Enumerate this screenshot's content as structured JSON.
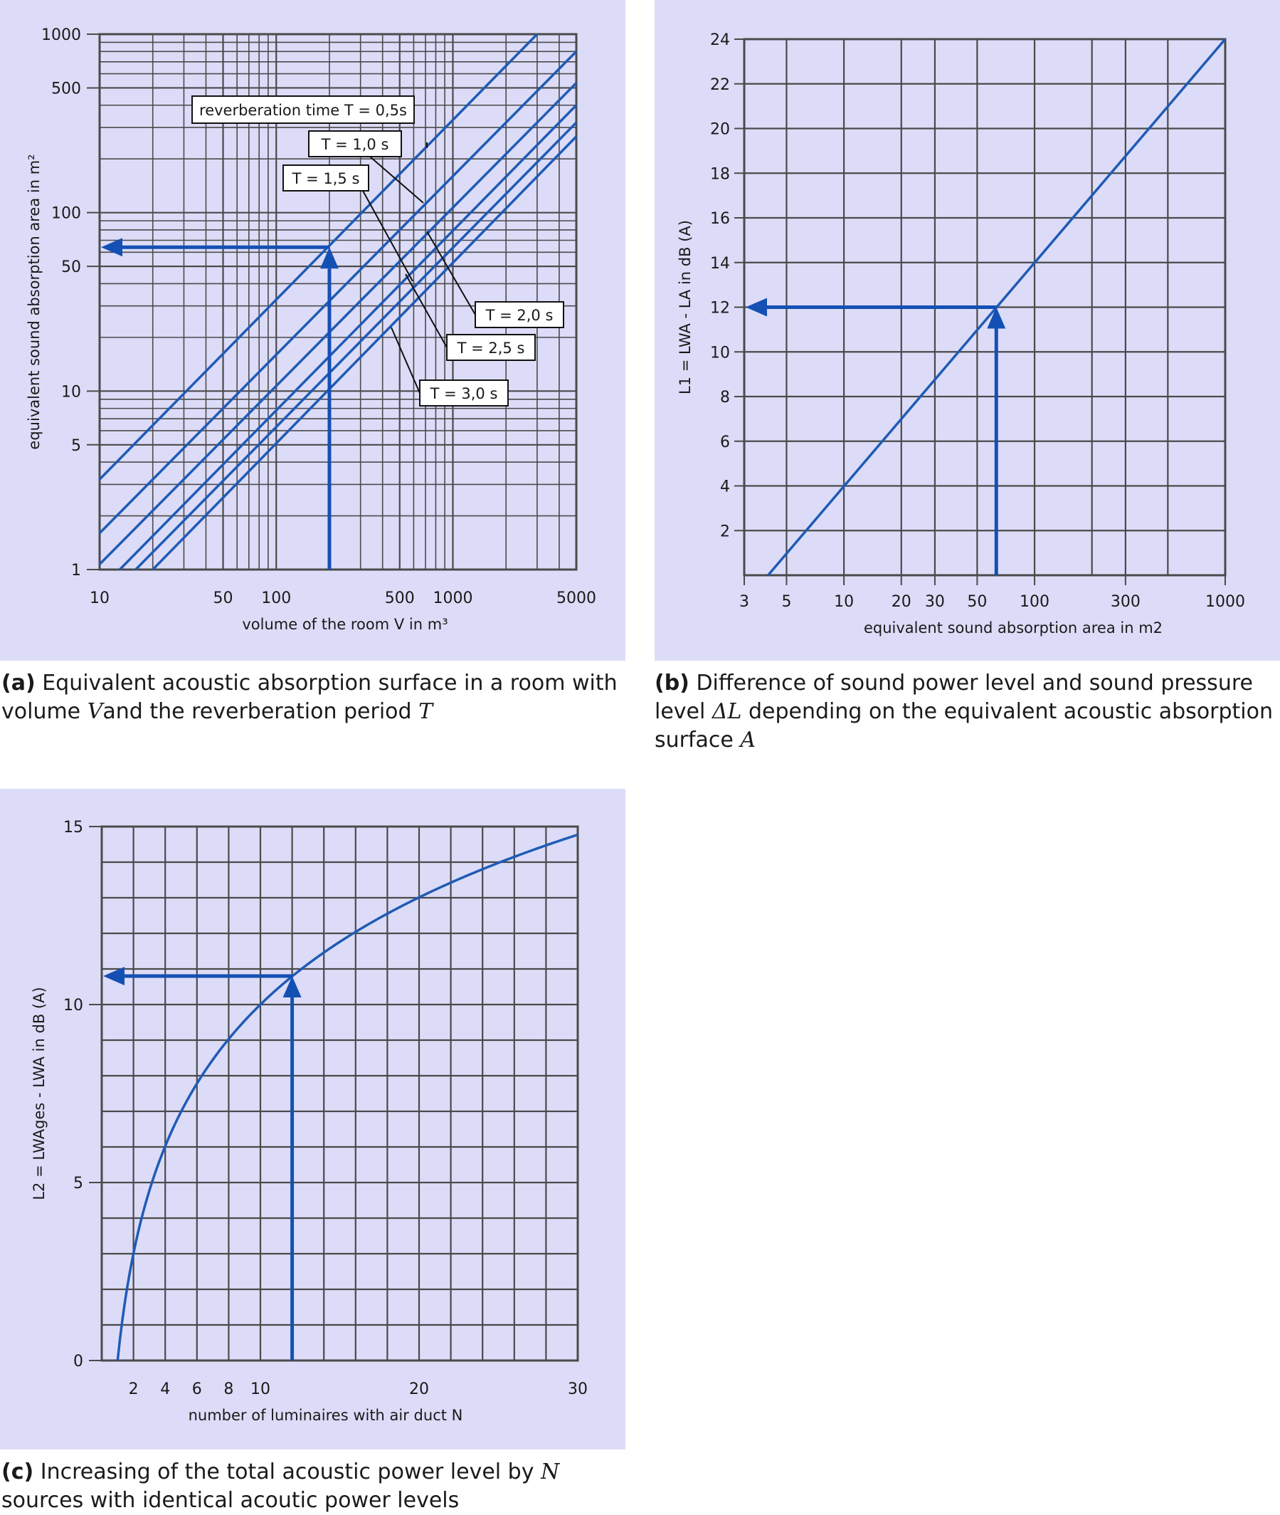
{
  "colors": {
    "panel_bg": "#dcdcf8",
    "grid": "#4a4a4a",
    "series": "#1f5bb5",
    "arrow": "#1450b4"
  },
  "captions": {
    "a": {
      "tag": "(a)",
      "text1": " Equivalent acoustic absorption surface in a room with volume ",
      "var1": "V",
      "text2": "and the reverberation period ",
      "var2": "T"
    },
    "b": {
      "tag": "(b)",
      "text1": " Difference of sound power level and sound pressure level ",
      "var1": "ΔL",
      "text2": " depending on the equivalent acoustic absorption surface ",
      "var2": "A"
    },
    "c": {
      "tag": "(c)",
      "text1": " Increasing of the total acoustic power level by ",
      "var1": "N",
      "text2": " sources with identical acoutic power levels"
    }
  },
  "chart_data": [
    {
      "id": "a",
      "type": "line",
      "xscale": "log",
      "yscale": "log",
      "xlim": [
        10,
        5000
      ],
      "ylim": [
        1,
        1000
      ],
      "xlabel": "volume of the room V in m³",
      "ylabel": "equivalent sound absorption area in m²",
      "xticks": [
        10,
        50,
        100,
        500,
        1000,
        5000
      ],
      "xtick_labels": [
        "10",
        "50",
        "100",
        "500",
        "1000",
        "5000"
      ],
      "yticks": [
        1,
        5,
        10,
        50,
        100,
        500,
        1000
      ],
      "ytick_labels": [
        "1",
        "5",
        "10",
        "50",
        "100",
        "500",
        "1000"
      ],
      "grid": true,
      "series": [
        {
          "name": "reverberation time T = 0,5s",
          "x": [
            10,
            3000
          ],
          "y": [
            3.2,
            1000
          ]
        },
        {
          "name": "T = 1,0 s",
          "x": [
            10,
            5000
          ],
          "y": [
            1.6,
            800
          ]
        },
        {
          "name": "T = 1,5 s",
          "x": [
            10,
            5000
          ],
          "y": [
            1.07,
            533
          ]
        },
        {
          "name": "T = 2,0 s",
          "x": [
            13,
            5000
          ],
          "y": [
            1,
            400
          ]
        },
        {
          "name": "T = 2,5 s",
          "x": [
            16,
            5000
          ],
          "y": [
            1,
            320
          ]
        },
        {
          "name": "T = 3,0 s",
          "x": [
            20,
            5000
          ],
          "y": [
            1,
            267
          ]
        }
      ],
      "annotation_arrow": {
        "x": 200,
        "y": 64
      }
    },
    {
      "id": "b",
      "type": "line",
      "xscale": "log",
      "xlim": [
        3,
        1000
      ],
      "ylim": [
        0,
        24
      ],
      "xlabel": "equivalent sound absorption area in m2",
      "ylabel": "L1 = LWA - LA in dB (A)",
      "xticks": [
        3,
        5,
        10,
        20,
        30,
        50,
        100,
        300,
        1000
      ],
      "xtick_labels": [
        "3",
        "5",
        "10",
        "20",
        "30",
        "50",
        "100",
        "300",
        "1000"
      ],
      "yticks": [
        2,
        4,
        6,
        8,
        10,
        12,
        14,
        16,
        18,
        20,
        22,
        24
      ],
      "ytick_labels": [
        "2",
        "4",
        "6",
        "8",
        "10",
        "12",
        "14",
        "16",
        "18",
        "20",
        "22",
        "24"
      ],
      "grid": true,
      "series": [
        {
          "x": [
            4,
            1000
          ],
          "y": [
            0,
            24
          ]
        }
      ],
      "annotation_arrow": {
        "x": 63,
        "y": 12
      }
    },
    {
      "id": "c",
      "type": "line",
      "xlim": [
        0,
        30
      ],
      "ylim": [
        0,
        15
      ],
      "xlabel": "number of luminaires with air duct N",
      "ylabel": "L2 = LWAges - LWA in dB (A)",
      "xticks": [
        2,
        4,
        6,
        8,
        10,
        20,
        30
      ],
      "xtick_labels": [
        "2",
        "4",
        "6",
        "8",
        "10",
        "20",
        "30"
      ],
      "yticks": [
        0,
        5,
        10,
        15
      ],
      "ytick_labels": [
        "0",
        "5",
        "10",
        "15"
      ],
      "grid": true,
      "series": [
        {
          "formula": "10*log10(N)",
          "x": [
            1,
            2,
            4,
            6,
            8,
            10,
            12,
            16,
            20,
            25,
            30
          ],
          "y": [
            0,
            3.0,
            6.0,
            7.8,
            9.0,
            10.0,
            10.8,
            12.0,
            13.0,
            14.0,
            14.8
          ]
        }
      ],
      "annotation_arrow": {
        "x": 12,
        "y": 10.8
      }
    }
  ]
}
